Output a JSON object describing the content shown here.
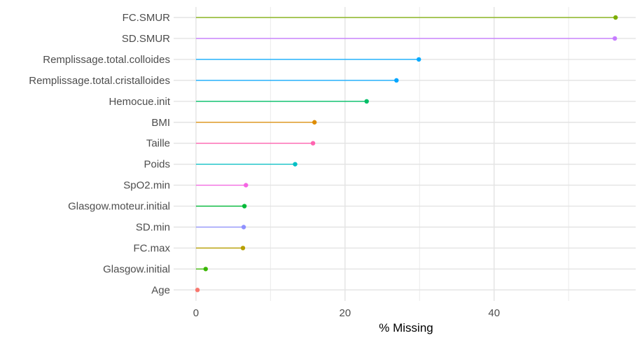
{
  "chart_data": {
    "type": "lollipop",
    "title": "",
    "xlabel": "% Missing",
    "ylabel": "",
    "xlim": [
      -3,
      59
    ],
    "x_ticks": [
      0,
      20,
      40
    ],
    "categories": [
      "FC.SMUR",
      "SD.SMUR",
      "Remplissage.total.colloides",
      "Remplissage.total.cristalloides",
      "Hemocue.init",
      "BMI",
      "Taille",
      "Poids",
      "SpO2.min",
      "Glasgow.moteur.initial",
      "SD.min",
      "FC.max",
      "Glasgow.initial",
      "Age"
    ],
    "values": [
      56.3,
      56.2,
      29.9,
      26.9,
      22.9,
      15.9,
      15.7,
      13.3,
      6.7,
      6.5,
      6.4,
      6.3,
      1.3,
      0.2
    ],
    "colors": [
      "#7CAE00",
      "#C77CFF",
      "#00A9FF",
      "#00A5FF",
      "#00BE67",
      "#DE8C00",
      "#FF64B0",
      "#00BFC4",
      "#F564E3",
      "#00BA38",
      "#8F91FF",
      "#B79F00",
      "#39B600",
      "#F8766D"
    ],
    "grid": true,
    "legend": "none"
  }
}
